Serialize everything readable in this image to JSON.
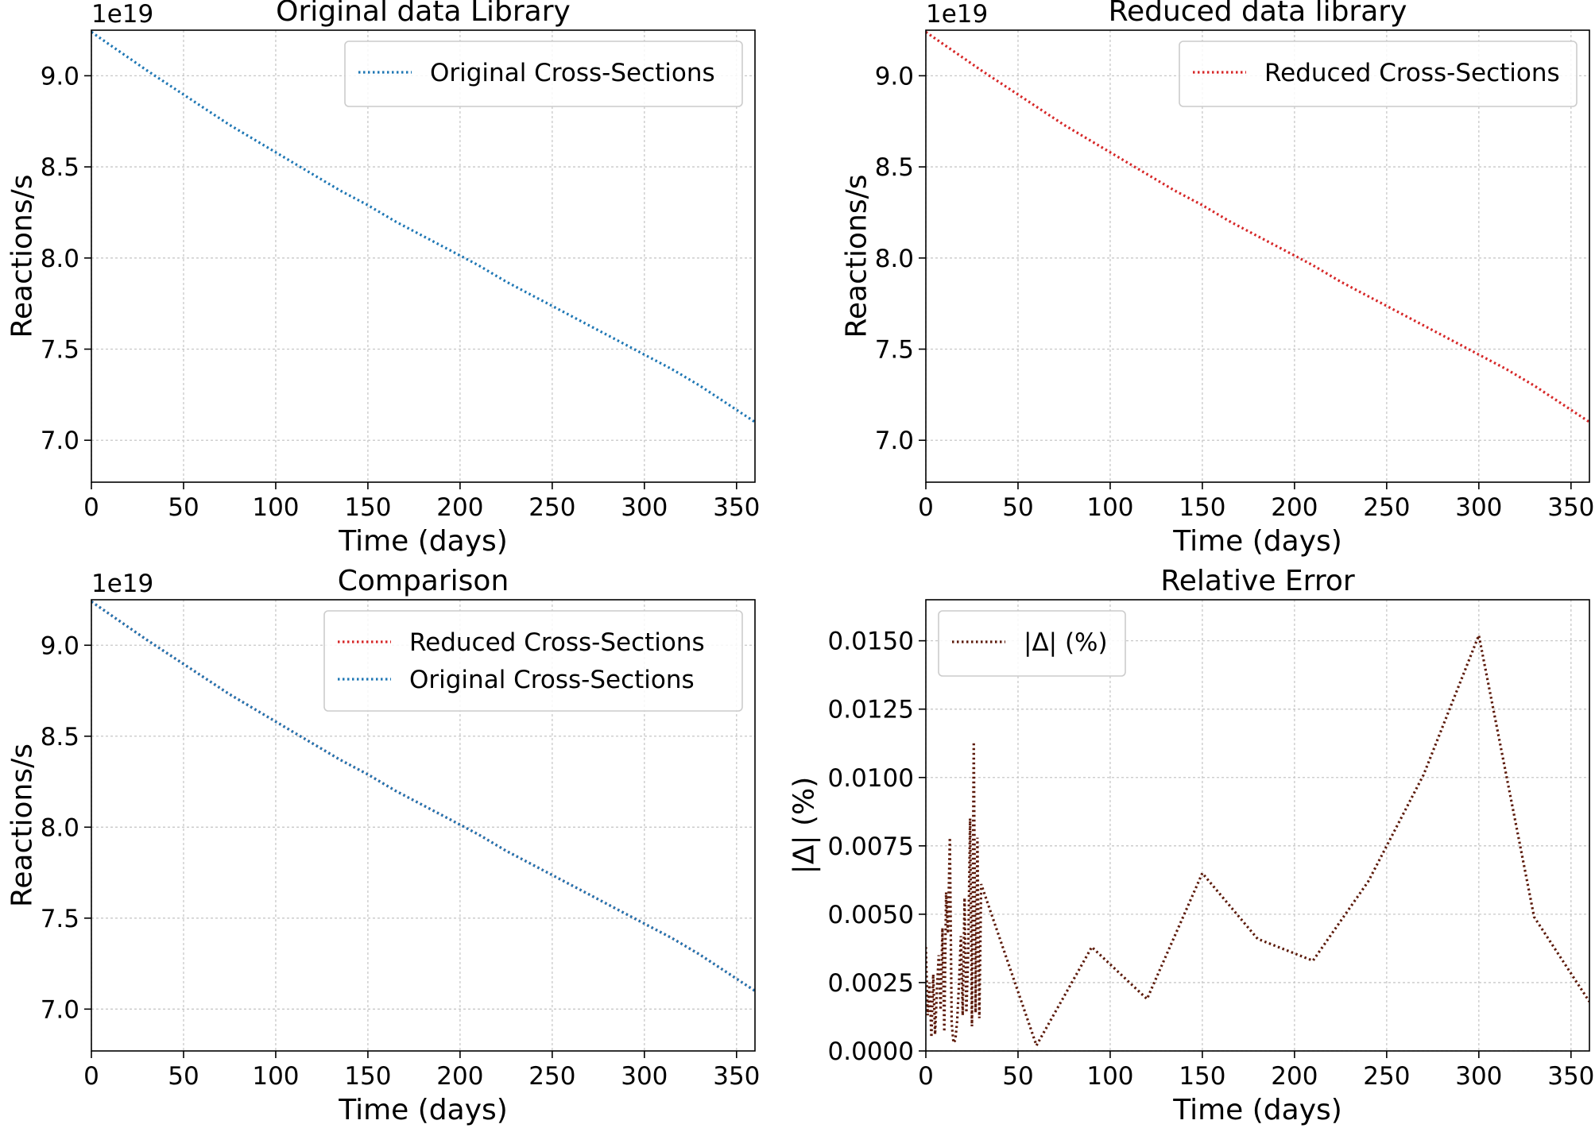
{
  "chart_data": [
    {
      "type": "line",
      "title": "Original data Library",
      "xlabel": "Time (days)",
      "ylabel": "Reactions/s",
      "offset_text": "1e19",
      "xlim": [
        0,
        360
      ],
      "ylim": [
        6.77,
        9.25
      ],
      "xticks": [
        0,
        50,
        100,
        150,
        200,
        250,
        300,
        350
      ],
      "yticks": [
        7.0,
        7.5,
        8.0,
        8.5,
        9.0
      ],
      "yticks_labels": [
        "7.0",
        "7.5",
        "8.0",
        "8.5",
        "9.0"
      ],
      "grid": true,
      "legend_position": "top-right",
      "series": [
        {
          "name": "Original Cross-Sections",
          "color": "#1f77b4",
          "linestyle": "dotted",
          "x": [
            0,
            10,
            20,
            30,
            45,
            60,
            75,
            90,
            105,
            120,
            135,
            150,
            165,
            180,
            195,
            210,
            225,
            240,
            255,
            270,
            285,
            300,
            315,
            330,
            345,
            360
          ],
          "y": [
            9.24,
            9.17,
            9.1,
            9.03,
            8.93,
            8.83,
            8.73,
            8.64,
            8.55,
            8.46,
            8.37,
            8.29,
            8.2,
            8.12,
            8.04,
            7.96,
            7.87,
            7.79,
            7.71,
            7.63,
            7.55,
            7.47,
            7.39,
            7.3,
            7.2,
            7.1
          ]
        }
      ]
    },
    {
      "type": "line",
      "title": "Reduced data library",
      "xlabel": "Time (days)",
      "ylabel": "Reactions/s",
      "offset_text": "1e19",
      "xlim": [
        0,
        360
      ],
      "ylim": [
        6.77,
        9.25
      ],
      "xticks": [
        0,
        50,
        100,
        150,
        200,
        250,
        300,
        350
      ],
      "yticks": [
        7.0,
        7.5,
        8.0,
        8.5,
        9.0
      ],
      "yticks_labels": [
        "7.0",
        "7.5",
        "8.0",
        "8.5",
        "9.0"
      ],
      "grid": true,
      "legend_position": "top-right",
      "series": [
        {
          "name": "Reduced Cross-Sections",
          "color": "#d62728",
          "linestyle": "dotted",
          "x": [
            0,
            10,
            20,
            30,
            45,
            60,
            75,
            90,
            105,
            120,
            135,
            150,
            165,
            180,
            195,
            210,
            225,
            240,
            255,
            270,
            285,
            300,
            315,
            330,
            345,
            360
          ],
          "y": [
            9.24,
            9.17,
            9.1,
            9.03,
            8.93,
            8.83,
            8.73,
            8.64,
            8.55,
            8.46,
            8.37,
            8.29,
            8.2,
            8.12,
            8.04,
            7.96,
            7.87,
            7.79,
            7.71,
            7.63,
            7.55,
            7.47,
            7.39,
            7.3,
            7.2,
            7.1
          ]
        }
      ]
    },
    {
      "type": "line",
      "title": "Comparison",
      "xlabel": "Time (days)",
      "ylabel": "Reactions/s",
      "offset_text": "1e19",
      "xlim": [
        0,
        360
      ],
      "ylim": [
        6.77,
        9.25
      ],
      "xticks": [
        0,
        50,
        100,
        150,
        200,
        250,
        300,
        350
      ],
      "yticks": [
        7.0,
        7.5,
        8.0,
        8.5,
        9.0
      ],
      "yticks_labels": [
        "7.0",
        "7.5",
        "8.0",
        "8.5",
        "9.0"
      ],
      "grid": true,
      "legend_position": "top-right",
      "series": [
        {
          "name": "Reduced Cross-Sections",
          "color": "#d62728",
          "linestyle": "dotted",
          "x": [
            0,
            10,
            20,
            30,
            45,
            60,
            75,
            90,
            105,
            120,
            135,
            150,
            165,
            180,
            195,
            210,
            225,
            240,
            255,
            270,
            285,
            300,
            315,
            330,
            345,
            360
          ],
          "y": [
            9.24,
            9.17,
            9.1,
            9.03,
            8.93,
            8.83,
            8.73,
            8.64,
            8.55,
            8.46,
            8.37,
            8.29,
            8.2,
            8.12,
            8.04,
            7.96,
            7.87,
            7.79,
            7.71,
            7.63,
            7.55,
            7.47,
            7.39,
            7.3,
            7.2,
            7.1
          ]
        },
        {
          "name": "Original Cross-Sections",
          "color": "#1f77b4",
          "linestyle": "dotted",
          "x": [
            0,
            10,
            20,
            30,
            45,
            60,
            75,
            90,
            105,
            120,
            135,
            150,
            165,
            180,
            195,
            210,
            225,
            240,
            255,
            270,
            285,
            300,
            315,
            330,
            345,
            360
          ],
          "y": [
            9.24,
            9.17,
            9.1,
            9.03,
            8.93,
            8.83,
            8.73,
            8.64,
            8.55,
            8.46,
            8.37,
            8.29,
            8.2,
            8.12,
            8.04,
            7.96,
            7.87,
            7.79,
            7.71,
            7.63,
            7.55,
            7.47,
            7.39,
            7.3,
            7.2,
            7.1
          ]
        }
      ]
    },
    {
      "type": "line",
      "title": "Relative Error",
      "xlabel": "Time (days)",
      "ylabel": "|Δ| (%)",
      "offset_text": "",
      "xlim": [
        0,
        360
      ],
      "ylim": [
        0,
        0.0165
      ],
      "xticks": [
        0,
        50,
        100,
        150,
        200,
        250,
        300,
        350
      ],
      "yticks": [
        0,
        0.0025,
        0.005,
        0.0075,
        0.01,
        0.0125,
        0.015
      ],
      "yticks_labels": [
        "0.0000",
        "0.0025",
        "0.0050",
        "0.0075",
        "0.0100",
        "0.0125",
        "0.0150"
      ],
      "grid": true,
      "legend_position": "top-left",
      "series": [
        {
          "name": "|Δ| (%)",
          "color": "#5c1a0a",
          "linestyle": "dotted",
          "x": [
            0,
            1,
            2,
            3,
            4,
            5,
            6,
            7,
            8,
            9,
            10,
            11,
            12,
            13,
            14,
            15,
            16,
            17,
            18,
            19,
            20,
            21,
            22,
            23,
            24,
            25,
            26,
            27,
            28,
            29,
            30,
            60,
            90,
            120,
            150,
            180,
            210,
            240,
            270,
            300,
            330,
            360
          ],
          "y": [
            0.0038,
            0.0013,
            0.0025,
            0.0005,
            0.0028,
            0.0006,
            0.0022,
            0.0035,
            0.0015,
            0.0045,
            0.0007,
            0.0058,
            0.0043,
            0.0078,
            0.001,
            0.0003,
            0.0004,
            0.0011,
            0.0025,
            0.0042,
            0.0013,
            0.0056,
            0.0014,
            0.0036,
            0.0085,
            0.0009,
            0.0113,
            0.0014,
            0.0078,
            0.0012,
            0.0061,
            0.0002,
            0.0038,
            0.0019,
            0.0065,
            0.0041,
            0.0033,
            0.0062,
            0.0101,
            0.0152,
            0.0049,
            0.0018
          ]
        }
      ]
    }
  ]
}
